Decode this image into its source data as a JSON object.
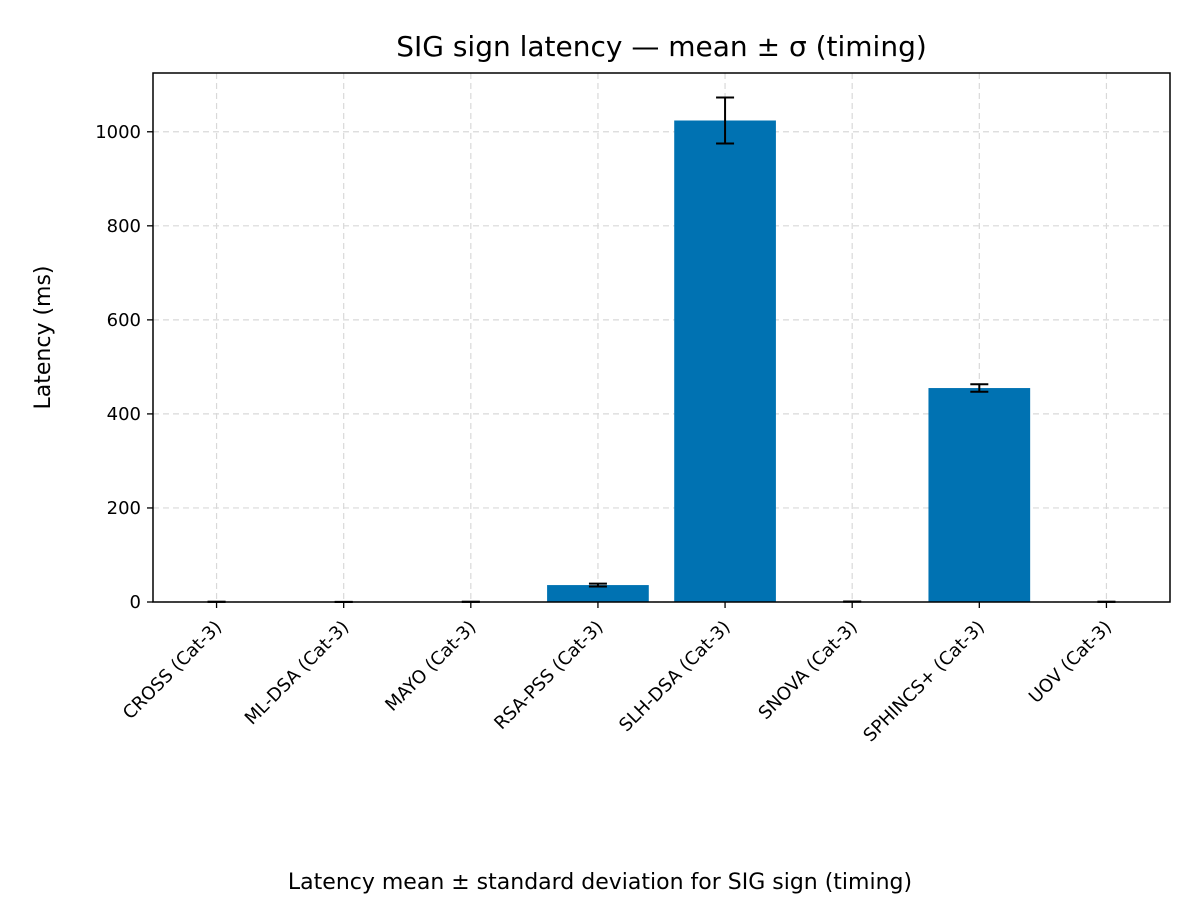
{
  "chart_data": {
    "type": "bar",
    "title": "SIG sign latency — mean ± σ (timing)",
    "xlabel": "",
    "ylabel": "Latency (ms)",
    "caption": "Latency mean ± standard deviation for SIG sign (timing)",
    "categories": [
      "CROSS (Cat-3)",
      "ML-DSA (Cat-3)",
      "MAYO (Cat-3)",
      "RSA-PSS (Cat-3)",
      "SLH-DSA (Cat-3)",
      "SNOVA (Cat-3)",
      "SPHINCS+ (Cat-3)",
      "UOV (Cat-3)"
    ],
    "values": [
      0.3,
      0.2,
      0.3,
      36,
      1024,
      0.8,
      455,
      0.3
    ],
    "errors": [
      0.1,
      0.1,
      0.1,
      3,
      49,
      0.3,
      8,
      0.1
    ],
    "ylim": [
      0,
      1125
    ],
    "yticks": [
      0,
      200,
      400,
      600,
      800,
      1000
    ],
    "grid": true,
    "bar_color": "#0072b2"
  }
}
